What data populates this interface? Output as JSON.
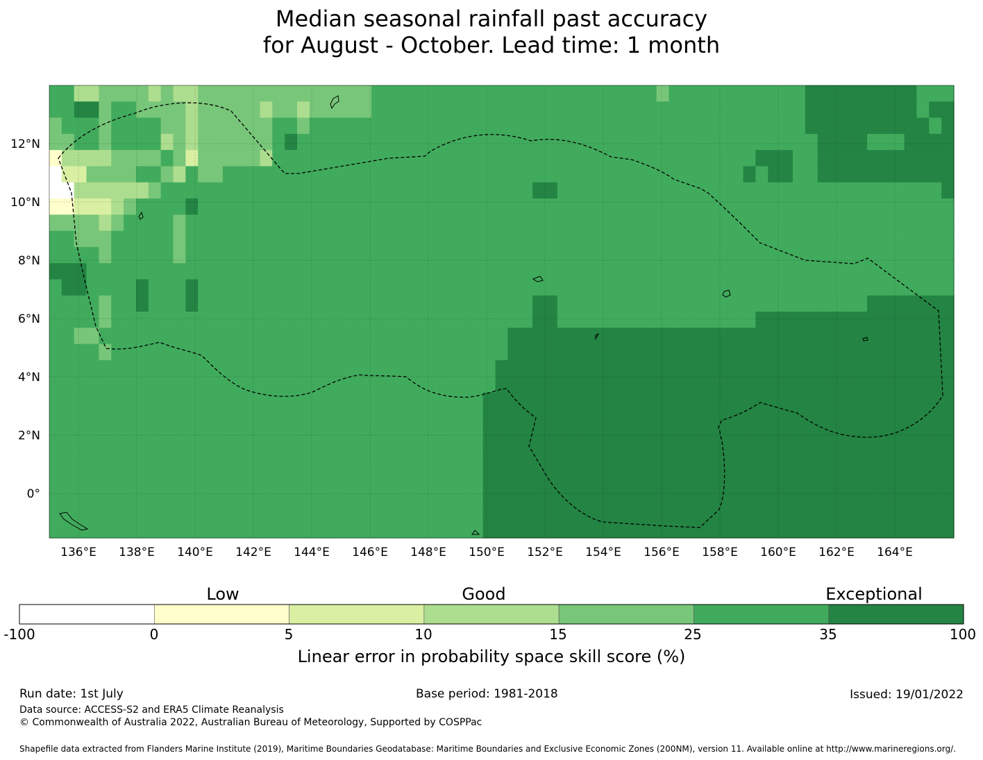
{
  "title": {
    "line1": "Median seasonal rainfall past accuracy",
    "line2": "for August - October. Lead time: 1 month"
  },
  "map": {
    "lon_labels": [
      "136°E",
      "138°E",
      "140°E",
      "142°E",
      "144°E",
      "146°E",
      "148°E",
      "150°E",
      "152°E",
      "154°E",
      "156°E",
      "158°E",
      "160°E",
      "162°E",
      "164°E"
    ],
    "lat_labels": [
      "12°N",
      "10°N",
      "8°N",
      "6°N",
      "4°N",
      "2°N",
      "0°"
    ],
    "categories_top_to_bottom": [
      "5533444434334444444444444455555555555555555555555455555555555666666666555",
      "5566455444434444434434444455555555555555555555555555555555555666666666566",
      "4555455554434444445545555555555555555555555555555555555555555666666666656",
      "4455455553434444445655555555555555555555555555555555555555555566665556666",
      "1333344445424444435555555555555555555555555555555555555556665566666666666",
      "0224444554354455555555555555555555555555555555555555555565665566666666666",
      "0033333345555555555555555555555555555556655555555555555555555555555555556",
      "1122234555565555555555555555555555555555555555555555555555555555555555555",
      "4444345555455555555555555555555555555555555555555555555555555555555555555",
      "5544455555455555555555555555555555555555555555555555555555555555555555555",
      "5555455555455555555555555555555555555555555555555555555555555555555555555",
      "6665555555555555555555555555555555555555555555555555555555555555555555555",
      "5665555655565555555555555555555555555555555555555555555555555555555555555",
      "5555455655565555555555555555555555555556655555555555555555555555556666666",
      "5555455555555555555555555555555555555556655555555555555556666666666666666",
      "5544555555555555555555555555555555555666666666666666666666666666666666666",
      "5555455555555555555555555555555555555666666666666666666666666666666666666",
      "5555555555555555555555555555555555556666666666666666666666666666666666666",
      "5555555555555555555555555555555555556666666666666666666666666666666666666",
      "5555555555555555555555555555555555566666666666666666666666666666666666666",
      "5555555555555555555555555555555555566666666666666666666666666666666666666",
      "5555555555555555555555555555555555566666666666666666666666666666666666666",
      "5555555555555555555555555555555555566666666666666666666666666666666666666",
      "5555555555555555555555555555555555566666666666666666666666666666666666666",
      "5555555555555555555555555555555555566666666666666666666666666666666666666",
      "5555555555555555555555555555555555566666666666666666666666666666666666666",
      "5555555555555555555555555555555555566666666666666666666666666666666666666",
      "5555555555555555555555555555555555566666666666666666666666666666666666666"
    ]
  },
  "colorbar": {
    "category_labels": [
      "Low",
      "Good",
      "Exceptional"
    ],
    "ticks": [
      "-100",
      "0",
      "5",
      "10",
      "15",
      "25",
      "35",
      "100"
    ],
    "colors": [
      "#ffffff",
      "#ffffcc",
      "#d9f0a3",
      "#addd8e",
      "#78c679",
      "#41ab5d",
      "#238443"
    ],
    "label": "Linear error in probability space skill score (%)"
  },
  "footer": {
    "run_date": "Run date: 1st July",
    "base_period": "Base period: 1981-2018",
    "issued": "Issued: 19/01/2022",
    "data_source": "Data source: ACCESS-S2 and ERA5 Climate Reanalysis",
    "copyright": "© Commonwealth of Australia 2022, Australian Bureau of Meteorology, Supported by COSPPac",
    "shapefile": "Shapefile data extracted from Flanders Marine Institute (2019), Maritime Boundaries Geodatabase: Maritime Boundaries and Exclusive Economic Zones (200NM), version 11. Available online at http://www.marineregions.org/."
  }
}
